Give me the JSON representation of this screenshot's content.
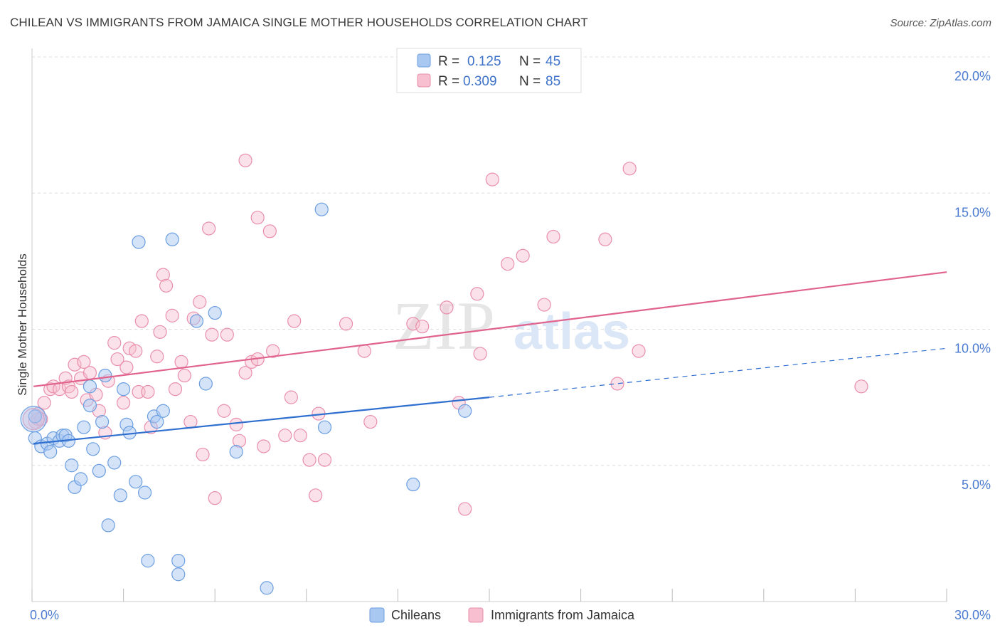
{
  "title": "CHILEAN VS IMMIGRANTS FROM JAMAICA SINGLE MOTHER HOUSEHOLDS CORRELATION CHART",
  "source": "Source: ZipAtlas.com",
  "watermark": {
    "zip": "ZIP",
    "atlas": "atlas"
  },
  "colors": {
    "chileans_fill": "#a9c8f1",
    "chileans_stroke": "#6b9ee0",
    "chileans_line": "#2f6fd0",
    "jamaica_fill": "#f7bfd0",
    "jamaica_stroke": "#e98fab",
    "jamaica_line": "#e0628d",
    "tick_label": "#4a7bd0",
    "grid": "#dddddd"
  },
  "legend_top": {
    "rows": [
      {
        "r_label": "R =",
        "r_value": "0.125",
        "n_label": "N =",
        "n_value": "45"
      },
      {
        "r_label": "R =",
        "r_value": "0.309",
        "n_label": "N =",
        "n_value": "85"
      }
    ]
  },
  "chart_data": {
    "type": "scatter",
    "title": "CHILEAN VS IMMIGRANTS FROM JAMAICA SINGLE MOTHER HOUSEHOLDS CORRELATION CHART",
    "xlabel": "",
    "ylabel": "Single Mother Households",
    "xlim": [
      0,
      30
    ],
    "ylim": [
      0,
      20
    ],
    "x_tick_labels": [
      "0.0%",
      "30.0%"
    ],
    "y_ticks": [
      5,
      10,
      15,
      20
    ],
    "y_tick_labels": [
      "5.0%",
      "10.0%",
      "15.0%",
      "20.0%"
    ],
    "grid": true,
    "legend": [
      "Chileans",
      "Immigrants from Jamaica"
    ],
    "legend_position": "bottom",
    "series": [
      {
        "name": "Chileans",
        "r": 0.125,
        "n": 45,
        "trend": {
          "x0": 0.05,
          "y0": 5.8,
          "x1": 15,
          "y1": 7.5,
          "dash_to_x": 30,
          "dash_to_y": 9.3
        },
        "points": [
          [
            0.1,
            6.8
          ],
          [
            0.1,
            6.0
          ],
          [
            0.3,
            5.7
          ],
          [
            0.5,
            5.8
          ],
          [
            0.6,
            5.5
          ],
          [
            0.7,
            6.0
          ],
          [
            0.9,
            5.9
          ],
          [
            1.0,
            6.1
          ],
          [
            1.1,
            6.1
          ],
          [
            1.2,
            5.9
          ],
          [
            1.3,
            5.0
          ],
          [
            1.4,
            4.2
          ],
          [
            1.6,
            4.5
          ],
          [
            1.7,
            6.4
          ],
          [
            1.9,
            7.9
          ],
          [
            1.9,
            7.2
          ],
          [
            2.0,
            5.6
          ],
          [
            2.2,
            4.8
          ],
          [
            2.3,
            6.6
          ],
          [
            2.4,
            8.3
          ],
          [
            2.5,
            2.8
          ],
          [
            2.7,
            5.1
          ],
          [
            2.9,
            3.9
          ],
          [
            3.0,
            7.8
          ],
          [
            3.1,
            6.5
          ],
          [
            3.2,
            6.2
          ],
          [
            3.4,
            4.4
          ],
          [
            3.7,
            4.0
          ],
          [
            3.8,
            1.5
          ],
          [
            3.5,
            13.2
          ],
          [
            4.0,
            6.8
          ],
          [
            4.1,
            6.6
          ],
          [
            4.3,
            7.0
          ],
          [
            4.6,
            13.3
          ],
          [
            4.8,
            1.0
          ],
          [
            4.8,
            1.5
          ],
          [
            5.4,
            10.3
          ],
          [
            5.7,
            8.0
          ],
          [
            6.0,
            10.6
          ],
          [
            6.7,
            5.5
          ],
          [
            7.7,
            0.5
          ],
          [
            9.5,
            14.4
          ],
          [
            9.6,
            6.4
          ],
          [
            12.5,
            4.3
          ],
          [
            14.2,
            7.0
          ]
        ]
      },
      {
        "name": "Immigrants from Jamaica",
        "r": 0.309,
        "n": 85,
        "trend": {
          "x0": 0.05,
          "y0": 7.9,
          "x1": 30,
          "y1": 12.1
        },
        "points": [
          [
            0.1,
            6.6
          ],
          [
            0.2,
            6.9
          ],
          [
            0.4,
            7.3
          ],
          [
            0.6,
            7.8
          ],
          [
            0.7,
            7.9
          ],
          [
            0.9,
            7.8
          ],
          [
            1.1,
            8.2
          ],
          [
            1.2,
            7.9
          ],
          [
            1.3,
            7.7
          ],
          [
            1.4,
            8.7
          ],
          [
            1.6,
            8.2
          ],
          [
            1.7,
            8.8
          ],
          [
            1.8,
            7.4
          ],
          [
            1.9,
            8.4
          ],
          [
            2.1,
            7.6
          ],
          [
            2.2,
            7.0
          ],
          [
            2.4,
            6.2
          ],
          [
            2.5,
            8.1
          ],
          [
            2.7,
            9.5
          ],
          [
            2.8,
            8.9
          ],
          [
            3.0,
            7.3
          ],
          [
            3.1,
            8.6
          ],
          [
            3.2,
            9.3
          ],
          [
            3.4,
            9.2
          ],
          [
            3.5,
            7.7
          ],
          [
            3.6,
            10.3
          ],
          [
            3.8,
            7.7
          ],
          [
            3.9,
            6.4
          ],
          [
            4.1,
            9.0
          ],
          [
            4.2,
            9.9
          ],
          [
            4.3,
            12.0
          ],
          [
            4.4,
            11.6
          ],
          [
            4.6,
            10.5
          ],
          [
            4.7,
            7.8
          ],
          [
            4.9,
            8.8
          ],
          [
            5.0,
            8.3
          ],
          [
            5.2,
            6.6
          ],
          [
            5.3,
            10.4
          ],
          [
            5.5,
            11.0
          ],
          [
            5.6,
            5.4
          ],
          [
            5.8,
            13.7
          ],
          [
            5.9,
            9.8
          ],
          [
            6.0,
            3.8
          ],
          [
            6.3,
            7.0
          ],
          [
            6.4,
            9.8
          ],
          [
            6.7,
            6.5
          ],
          [
            6.8,
            5.9
          ],
          [
            7.0,
            8.4
          ],
          [
            7.2,
            8.8
          ],
          [
            7.4,
            8.9
          ],
          [
            7.0,
            16.2
          ],
          [
            7.4,
            14.1
          ],
          [
            7.6,
            5.7
          ],
          [
            7.8,
            13.6
          ],
          [
            7.9,
            9.2
          ],
          [
            8.3,
            6.1
          ],
          [
            8.5,
            7.5
          ],
          [
            8.6,
            10.3
          ],
          [
            8.8,
            6.1
          ],
          [
            9.1,
            5.2
          ],
          [
            9.3,
            3.9
          ],
          [
            9.4,
            6.9
          ],
          [
            9.6,
            5.2
          ],
          [
            10.3,
            10.2
          ],
          [
            10.9,
            9.2
          ],
          [
            11.1,
            6.6
          ],
          [
            12.5,
            10.2
          ],
          [
            12.8,
            10.1
          ],
          [
            13.6,
            10.8
          ],
          [
            14.0,
            7.3
          ],
          [
            14.2,
            3.4
          ],
          [
            14.6,
            11.3
          ],
          [
            14.7,
            9.1
          ],
          [
            15.1,
            15.5
          ],
          [
            15.6,
            12.4
          ],
          [
            16.1,
            12.7
          ],
          [
            16.8,
            10.9
          ],
          [
            17.1,
            13.4
          ],
          [
            18.8,
            13.3
          ],
          [
            19.2,
            8.0
          ],
          [
            19.6,
            15.9
          ],
          [
            19.9,
            9.2
          ],
          [
            27.2,
            7.9
          ],
          [
            0.2,
            6.7
          ],
          [
            0.3,
            6.7
          ]
        ]
      }
    ],
    "big_points": [
      {
        "series": "Chileans",
        "x": 0.05,
        "y": 6.7
      },
      {
        "series": "Immigrants from Jamaica",
        "x": 0.05,
        "y": 6.7
      }
    ]
  }
}
